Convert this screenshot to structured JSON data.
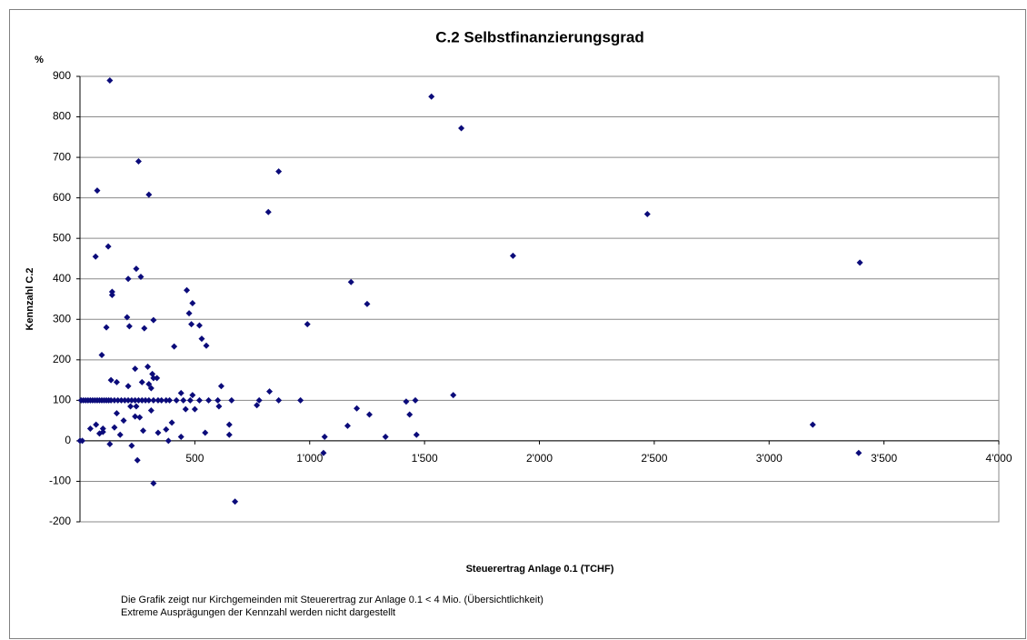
{
  "chart_data": {
    "type": "scatter",
    "title": "C.2 Selbstfinanzierungsgrad",
    "y_unit": "%",
    "y_label": "Kennzahl C.2",
    "x_label": "Steuerertrag Anlage 0.1 (TCHF)",
    "notes": [
      "Die Grafik zeigt nur Kirchgemeinden  mit Steuerertrag  zur Anlage  0.1 < 4 Mio. (Übersichtlichkeit)",
      "Extreme Ausprägungen  der Kennzahl werden nicht dargestellt"
    ],
    "color": "#0b0b7a",
    "grid": true,
    "xlim": [
      0,
      4000
    ],
    "xticks": [
      500,
      {
        "value": 1000,
        "label": "1'000"
      },
      {
        "value": 1500,
        "label": "1'500"
      },
      {
        "value": 2000,
        "label": "2'000"
      },
      {
        "value": 2500,
        "label": "2'500"
      },
      {
        "value": 3000,
        "label": "3'000"
      },
      {
        "value": 3500,
        "label": "3'500"
      },
      {
        "value": 4000,
        "label": "4'000"
      }
    ],
    "ylim": [
      -200,
      900
    ],
    "yticks": [
      -200,
      -100,
      0,
      100,
      200,
      300,
      400,
      500,
      600,
      700,
      800,
      900
    ],
    "x": [
      130,
      1530,
      1660,
      255,
      865,
      75,
      300,
      820,
      2470,
      1885,
      3395,
      68,
      123,
      245,
      265,
      210,
      1180,
      465,
      140,
      140,
      490,
      1250,
      475,
      990,
      520,
      485,
      115,
      215,
      280,
      320,
      530,
      550,
      410,
      205,
      95,
      240,
      295,
      135,
      315,
      335,
      320,
      615,
      300,
      270,
      310,
      210,
      160,
      825,
      1625,
      440,
      490,
      770,
      1205,
      1260,
      1435,
      1460,
      1420,
      1465,
      1330,
      1065,
      1165,
      3190,
      1060,
      3390,
      650,
      650,
      675,
      320,
      250,
      225,
      130,
      385,
      0,
      10,
      85,
      100,
      190,
      240,
      260,
      340,
      440,
      545,
      605,
      460,
      500,
      400,
      375,
      275,
      175,
      150,
      100,
      45,
      70,
      160,
      220,
      245,
      310,
      5,
      15,
      25,
      35,
      45,
      55,
      65,
      75,
      85,
      95,
      105,
      115,
      125,
      135,
      150,
      165,
      180,
      195,
      210,
      225,
      240,
      255,
      270,
      285,
      300,
      320,
      340,
      355,
      375,
      390,
      420,
      450,
      480,
      520,
      560,
      600,
      660,
      780,
      865,
      960
    ],
    "values": [
      890,
      850,
      772,
      690,
      665,
      618,
      608,
      565,
      560,
      457,
      440,
      455,
      480,
      425,
      405,
      400,
      392,
      372,
      368,
      360,
      340,
      338,
      315,
      288,
      285,
      288,
      280,
      283,
      278,
      298,
      252,
      235,
      233,
      305,
      212,
      178,
      183,
      150,
      165,
      155,
      155,
      135,
      140,
      145,
      130,
      135,
      145,
      122,
      113,
      118,
      113,
      88,
      80,
      65,
      65,
      100,
      97,
      15,
      10,
      10,
      37,
      40,
      -30,
      -30,
      40,
      15,
      -150,
      -105,
      -48,
      -12,
      -8,
      0,
      0,
      0,
      18,
      30,
      50,
      60,
      58,
      20,
      10,
      20,
      85,
      78,
      78,
      45,
      28,
      25,
      15,
      33,
      22,
      30,
      40,
      68,
      85,
      85,
      75,
      100,
      100,
      100,
      100,
      100,
      100,
      100,
      100,
      100,
      100,
      100,
      100,
      100,
      100,
      100,
      100,
      100,
      100,
      100,
      100,
      100,
      100,
      100,
      100,
      100,
      100,
      100,
      100,
      100,
      100,
      100,
      100,
      100,
      100,
      100,
      100,
      100,
      100,
      100,
      100
    ]
  }
}
